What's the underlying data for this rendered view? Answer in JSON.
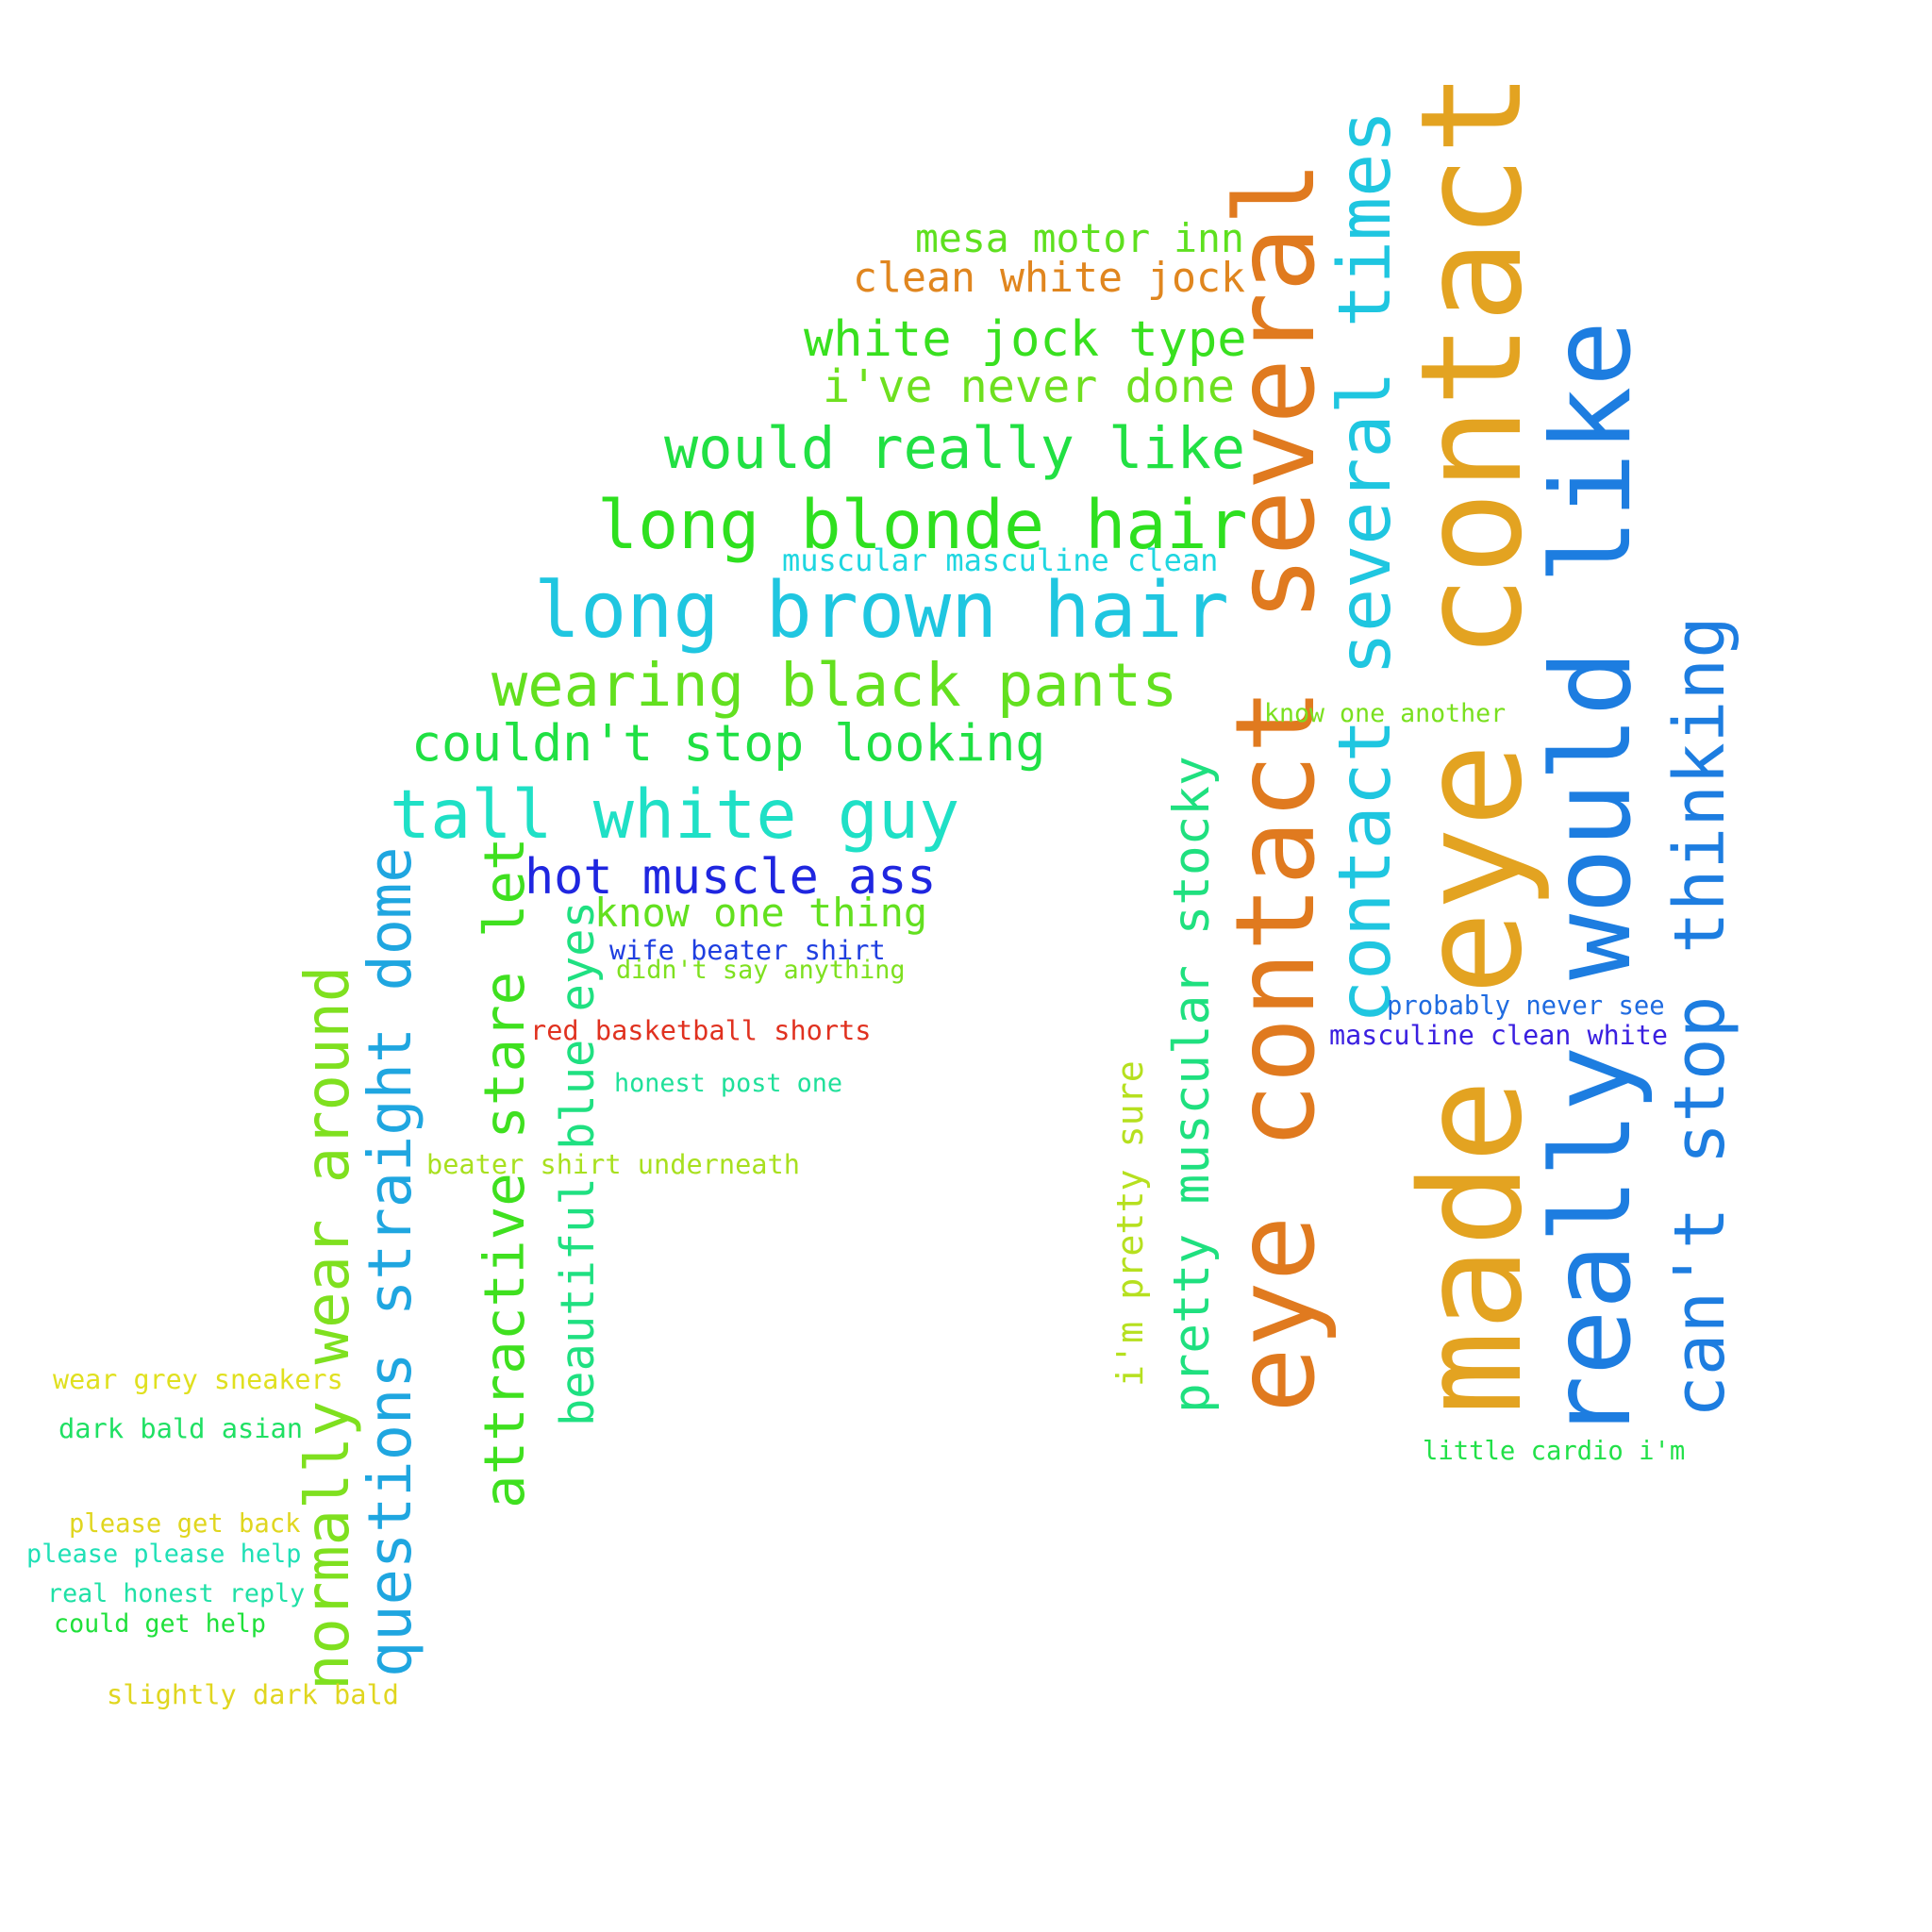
{
  "words": [
    {
      "text": "made eye contact",
      "color": "#e3a321",
      "vertical": true
    },
    {
      "text": "really would like",
      "color": "#1d7de0",
      "vertical": true
    },
    {
      "text": "eye contact several",
      "color": "#e07a1f",
      "vertical": true
    },
    {
      "text": "contact several times",
      "color": "#1fc6e0",
      "vertical": true
    },
    {
      "text": "can't stop thinking",
      "color": "#1d7de0",
      "vertical": true
    },
    {
      "text": "long brown hair",
      "color": "#1fc6e0",
      "vertical": false
    },
    {
      "text": "long blonde hair",
      "color": "#2ee01f",
      "vertical": false
    },
    {
      "text": "tall white guy",
      "color": "#1fe0c6",
      "vertical": false
    },
    {
      "text": "wearing black pants",
      "color": "#63e01f",
      "vertical": false
    },
    {
      "text": "would really like",
      "color": "#21e043",
      "vertical": false
    },
    {
      "text": "white jock type",
      "color": "#38e01f",
      "vertical": false
    },
    {
      "text": "couldn't stop looking",
      "color": "#1fe043",
      "vertical": false
    },
    {
      "text": "hot muscle ass",
      "color": "#1f26e0",
      "vertical": false
    },
    {
      "text": "questions straight dome",
      "color": "#1fa6e0",
      "vertical": true
    },
    {
      "text": "normally wear around",
      "color": "#7fe01f",
      "vertical": true
    },
    {
      "text": "attractive stare let",
      "color": "#3fe01f",
      "vertical": true
    },
    {
      "text": "pretty muscular stocky",
      "color": "#1fe07f",
      "vertical": true
    },
    {
      "text": "beautiful blue eyes",
      "color": "#1fe081",
      "vertical": true
    },
    {
      "text": "i've never done",
      "color": "#6ee01f",
      "vertical": false
    },
    {
      "text": "clean white jock",
      "color": "#e0861f",
      "vertical": false
    },
    {
      "text": "mesa motor inn",
      "color": "#5ee01f",
      "vertical": false
    },
    {
      "text": "know one thing",
      "color": "#63e01f",
      "vertical": false
    },
    {
      "text": "i'm pretty sure",
      "color": "#b6e01f",
      "vertical": true
    },
    {
      "text": "muscular masculine clean",
      "color": "#1fd6e0",
      "vertical": false
    },
    {
      "text": "red basketball shorts",
      "color": "#e0311f",
      "vertical": false
    },
    {
      "text": "wife beater shirt",
      "color": "#1f3fe0",
      "vertical": false
    },
    {
      "text": "masculine clean white",
      "color": "#3a1fe0",
      "vertical": false
    },
    {
      "text": "didn't say anything",
      "color": "#7ee01f",
      "vertical": false
    },
    {
      "text": "honest post one",
      "color": "#1fe09a",
      "vertical": false
    },
    {
      "text": "beater shirt underneath",
      "color": "#a8e01f",
      "vertical": false
    },
    {
      "text": "probably never see",
      "color": "#1f6be0",
      "vertical": false
    },
    {
      "text": "know one another",
      "color": "#7ae01f",
      "vertical": false
    },
    {
      "text": "little cardio i'm",
      "color": "#21e048",
      "vertical": false
    },
    {
      "text": "wear grey sneakers",
      "color": "#e0e01f",
      "vertical": false
    },
    {
      "text": "dark bald asian",
      "color": "#1fe063",
      "vertical": false
    },
    {
      "text": "please get back",
      "color": "#e0d61f",
      "vertical": false
    },
    {
      "text": "please please help",
      "color": "#1fe0b6",
      "vertical": false
    },
    {
      "text": "real honest reply",
      "color": "#1fe0a6",
      "vertical": false
    },
    {
      "text": "could get help",
      "color": "#1fe03a",
      "vertical": false
    },
    {
      "text": "slightly dark bald",
      "color": "#e0d61f",
      "vertical": false
    }
  ]
}
